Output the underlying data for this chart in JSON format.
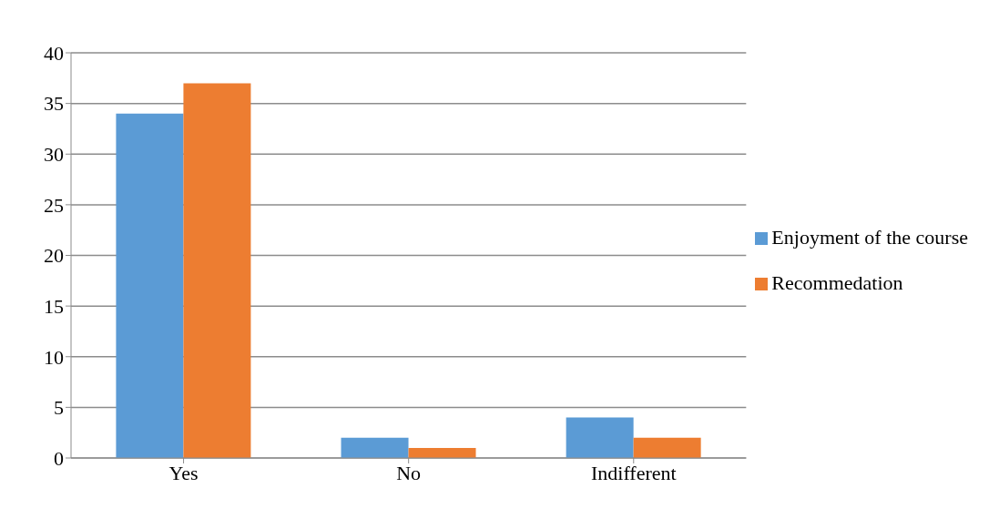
{
  "chart_data": {
    "type": "bar",
    "categories": [
      "Yes",
      "No",
      "Indifferent"
    ],
    "series": [
      {
        "name": "Enjoyment of the course",
        "color": "#5b9bd5",
        "values": [
          34,
          2,
          4
        ]
      },
      {
        "name": "Recommedation",
        "color": "#ed7d31",
        "values": [
          37,
          1,
          2
        ]
      }
    ],
    "ylim": [
      0,
      40
    ],
    "yticks": [
      0,
      5,
      10,
      15,
      20,
      25,
      30,
      35,
      40
    ],
    "grid": "y",
    "legend": "right"
  }
}
